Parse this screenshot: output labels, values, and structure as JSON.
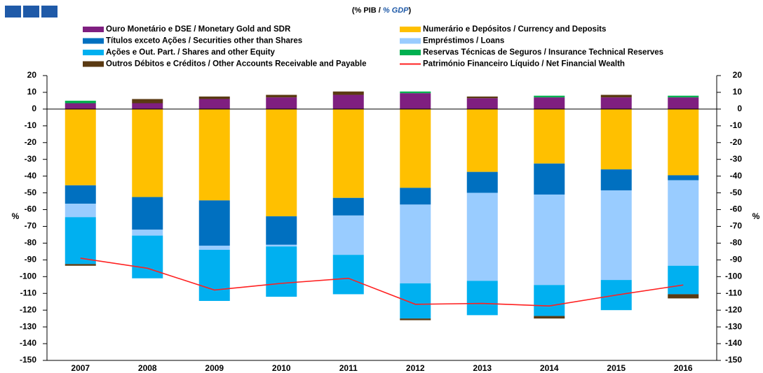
{
  "chart_data": {
    "type": "bar",
    "stacked": true,
    "subtitle": [
      "(% PIB / ",
      "% GDP",
      ")"
    ],
    "ylabel": "%",
    "y2label": "%",
    "categories": [
      "2007",
      "2008",
      "2009",
      "2010",
      "2011",
      "2012",
      "2013",
      "2014",
      "2015",
      "2016"
    ],
    "series": [
      {
        "name": "Ouro Monetário e DSE / Monetary Gold and SDR",
        "color": "#7f1f80",
        "values": [
          3.5,
          3.5,
          6,
          7,
          8.5,
          9.5,
          6.5,
          7,
          7,
          7
        ]
      },
      {
        "name": "Numerário e Depósitos / Currency and Deposits",
        "color": "#ffc000",
        "values": [
          -45.5,
          -52.5,
          -54.5,
          -64,
          -53,
          -47,
          -37.5,
          -32.5,
          -36,
          -39.5
        ]
      },
      {
        "name": "Títulos exceto Ações / Securities other than Shares",
        "color": "#0070c0",
        "values": [
          -11,
          -19.5,
          -27,
          -17,
          -10.5,
          -10,
          -12.5,
          -18.5,
          -12.5,
          -3
        ]
      },
      {
        "name": "Empréstimos / Loans",
        "color": "#99ccff",
        "values": [
          -8,
          -3.5,
          -2.5,
          -1,
          -23.5,
          -47,
          -52.5,
          -54,
          -53.5,
          -51
        ]
      },
      {
        "name": "Ações e Out. Part. / Shares and other Equity",
        "color": "#00b0f0",
        "values": [
          -28,
          -25.5,
          -30.5,
          -30,
          -23.5,
          -21,
          -20.5,
          -18.5,
          -18,
          -17
        ]
      },
      {
        "name": "Reservas Técnicas de Seguros / Insurance Technical Reserves",
        "color": "#00b050",
        "values": [
          1.5,
          0,
          0,
          0,
          0,
          1,
          0,
          1,
          0,
          1
        ]
      },
      {
        "name": "Outros Débitos e Créditos / Other Accounts Receivable and Payable",
        "color": "#5a3a12",
        "values": [
          -1,
          2.5,
          1.5,
          1.5,
          2,
          -1,
          1,
          -1.5,
          1.5,
          -2.5
        ]
      },
      {
        "name": "Património Financeiro Líquido / Net Financial Wealth",
        "color": "#ff2020",
        "type": "line",
        "values": [
          -89,
          -95,
          -108,
          -104,
          -101,
          -116.5,
          -116,
          -117.5,
          -111,
          -105
        ]
      }
    ],
    "ylim": [
      -150,
      20
    ],
    "yticks": [
      20,
      10,
      0,
      -10,
      -20,
      -30,
      -40,
      -50,
      -60,
      -70,
      -80,
      -90,
      -100,
      -110,
      -120,
      -130,
      -140,
      -150
    ],
    "y2lim": [
      -150,
      20
    ],
    "y2ticks": [
      20,
      10,
      0,
      -10,
      -20,
      -30,
      -40,
      -50,
      -60,
      -70,
      -80,
      -90,
      -100,
      -110,
      -120,
      -130,
      -140,
      -150
    ],
    "grid": false
  }
}
